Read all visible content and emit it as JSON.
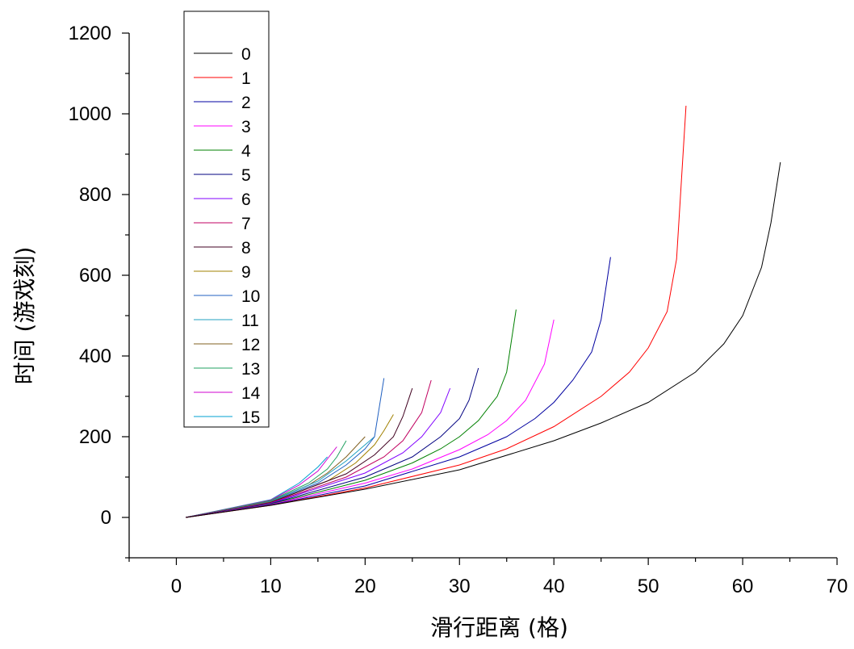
{
  "chart_data": {
    "type": "line",
    "xlabel": "滑行距离 (格)",
    "ylabel": "时间 (游戏刻)",
    "xlim": [
      -5,
      70
    ],
    "ylim": [
      -100,
      1200
    ],
    "x_ticks": [
      0,
      10,
      20,
      30,
      40,
      50,
      60,
      70
    ],
    "y_ticks": [
      0,
      200,
      400,
      600,
      800,
      1000,
      1200
    ],
    "legend_position": "top-left",
    "series": [
      {
        "name": "0",
        "color": "#000000",
        "x": [
          1,
          10,
          20,
          30,
          40,
          45,
          50,
          55,
          58,
          60,
          62,
          63,
          64
        ],
        "y": [
          0,
          30,
          70,
          118,
          190,
          234,
          285,
          360,
          430,
          500,
          620,
          730,
          880
        ]
      },
      {
        "name": "1",
        "color": "#ff0000",
        "x": [
          1,
          10,
          20,
          30,
          35,
          40,
          45,
          48,
          50,
          52,
          53,
          54
        ],
        "y": [
          0,
          30,
          73,
          130,
          170,
          225,
          300,
          360,
          420,
          510,
          640,
          1020
        ]
      },
      {
        "name": "2",
        "color": "#0000a0",
        "x": [
          1,
          10,
          20,
          30,
          35,
          38,
          40,
          42,
          44,
          45,
          46
        ],
        "y": [
          0,
          31,
          78,
          150,
          200,
          245,
          285,
          340,
          410,
          490,
          645
        ]
      },
      {
        "name": "3",
        "color": "#ff00ff",
        "x": [
          1,
          10,
          20,
          25,
          30,
          33,
          35,
          37,
          39,
          40
        ],
        "y": [
          0,
          32,
          85,
          120,
          168,
          205,
          240,
          290,
          380,
          490
        ]
      },
      {
        "name": "4",
        "color": "#008000",
        "x": [
          1,
          10,
          20,
          25,
          28,
          30,
          32,
          34,
          35,
          36
        ],
        "y": [
          0,
          33,
          92,
          135,
          170,
          200,
          240,
          300,
          360,
          515
        ]
      },
      {
        "name": "5",
        "color": "#000080",
        "x": [
          1,
          10,
          20,
          25,
          28,
          30,
          31,
          32
        ],
        "y": [
          0,
          34,
          100,
          150,
          200,
          245,
          290,
          370
        ]
      },
      {
        "name": "6",
        "color": "#8000ff",
        "x": [
          1,
          10,
          20,
          24,
          26,
          28,
          29
        ],
        "y": [
          0,
          35,
          110,
          160,
          200,
          260,
          320
        ]
      },
      {
        "name": "7",
        "color": "#c00060",
        "x": [
          1,
          10,
          18,
          22,
          24,
          26,
          27
        ],
        "y": [
          0,
          36,
          100,
          150,
          190,
          260,
          340
        ]
      },
      {
        "name": "8",
        "color": "#400020",
        "x": [
          1,
          10,
          18,
          21,
          23,
          24,
          25
        ],
        "y": [
          0,
          37,
          108,
          155,
          200,
          250,
          320
        ]
      },
      {
        "name": "9",
        "color": "#a08000",
        "x": [
          1,
          10,
          16,
          19,
          21,
          22,
          23
        ],
        "y": [
          0,
          38,
          90,
          135,
          180,
          215,
          255
        ]
      },
      {
        "name": "10",
        "color": "#2060c0",
        "x": [
          1,
          10,
          15,
          18,
          20,
          21,
          22
        ],
        "y": [
          0,
          39,
          85,
          130,
          170,
          200,
          345
        ]
      },
      {
        "name": "11",
        "color": "#20a0c0",
        "x": [
          1,
          10,
          15,
          18,
          19,
          20,
          21
        ],
        "y": [
          0,
          40,
          90,
          140,
          160,
          180,
          200
        ]
      },
      {
        "name": "12",
        "color": "#806020",
        "x": [
          1,
          10,
          14,
          16,
          18,
          19,
          20
        ],
        "y": [
          0,
          41,
          80,
          110,
          150,
          175,
          200
        ]
      },
      {
        "name": "13",
        "color": "#20a060",
        "x": [
          1,
          10,
          14,
          16,
          17,
          18
        ],
        "y": [
          0,
          42,
          85,
          120,
          150,
          190
        ]
      },
      {
        "name": "14",
        "color": "#d000d0",
        "x": [
          1,
          10,
          13,
          15,
          16,
          17
        ],
        "y": [
          0,
          43,
          80,
          115,
          145,
          175
        ]
      },
      {
        "name": "15",
        "color": "#00a0d0",
        "x": [
          1,
          10,
          13,
          14,
          15,
          16
        ],
        "y": [
          0,
          44,
          85,
          105,
          125,
          150
        ]
      }
    ]
  }
}
